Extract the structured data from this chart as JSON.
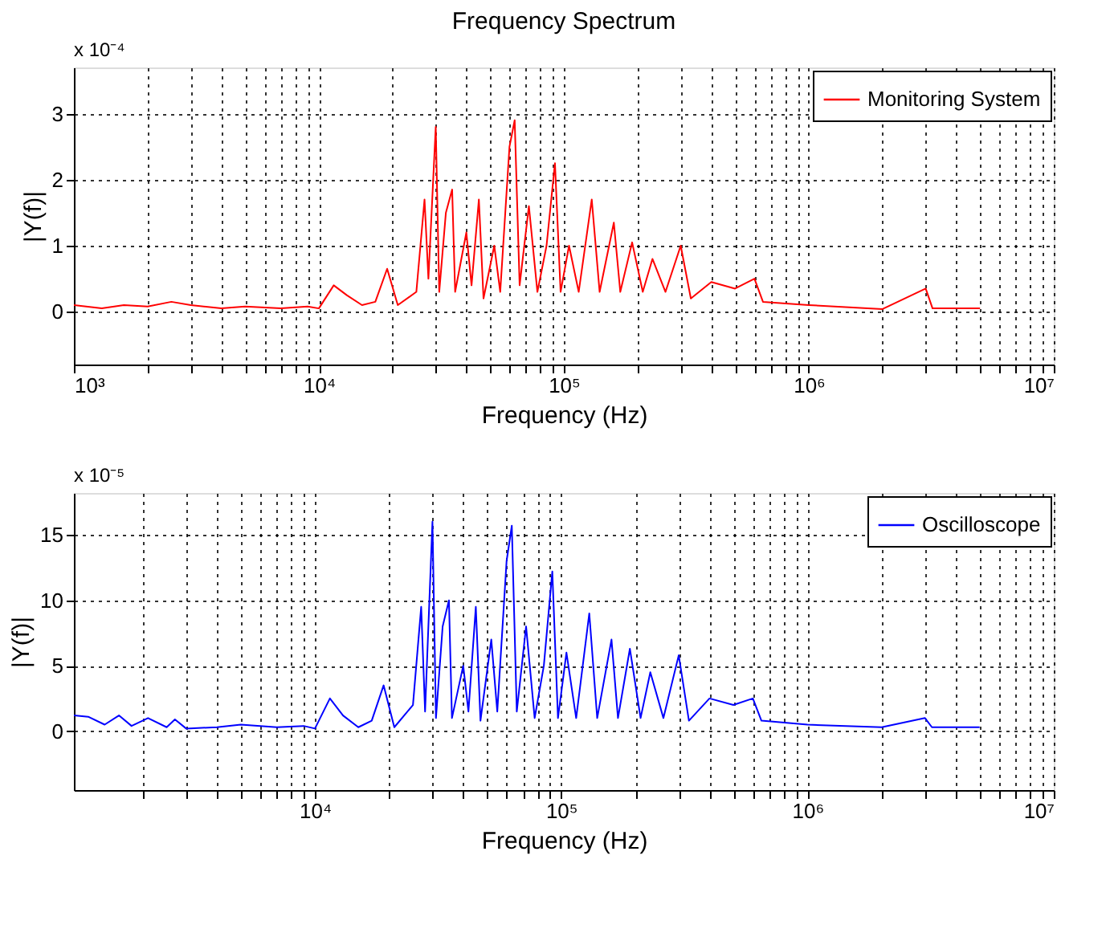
{
  "chart_data": [
    {
      "type": "line",
      "title": "Frequency Spectrum",
      "xlabel": "Frequency (Hz)",
      "ylabel": "|Y(f)|",
      "annotations": [
        "x 10⁻⁴"
      ],
      "log": "x",
      "grid": true,
      "legend": "top right",
      "xlim": [
        1000,
        10000000
      ],
      "ylim": [
        -0.8,
        3.7
      ],
      "yticks": [
        0,
        1,
        2,
        3
      ],
      "xticks": [
        {
          "value": 1000,
          "label": "10³"
        },
        {
          "value": 2000,
          "label": null
        },
        {
          "value": 3000,
          "label": null
        },
        {
          "value": 4000,
          "label": null
        },
        {
          "value": 5000,
          "label": null
        },
        {
          "value": 6000,
          "label": null
        },
        {
          "value": 7000,
          "label": null
        },
        {
          "value": 8000,
          "label": null
        },
        {
          "value": 9000,
          "label": null
        },
        {
          "value": 10000,
          "label": "10⁴"
        },
        {
          "value": 20000,
          "label": null
        },
        {
          "value": 30000,
          "label": null
        },
        {
          "value": 40000,
          "label": null
        },
        {
          "value": 50000,
          "label": null
        },
        {
          "value": 60000,
          "label": null
        },
        {
          "value": 70000,
          "label": null
        },
        {
          "value": 80000,
          "label": null
        },
        {
          "value": 90000,
          "label": null
        },
        {
          "value": 100000,
          "label": "10⁵"
        },
        {
          "value": 200000,
          "label": null
        },
        {
          "value": 300000,
          "label": null
        },
        {
          "value": 400000,
          "label": null
        },
        {
          "value": 500000,
          "label": null
        },
        {
          "value": 600000,
          "label": null
        },
        {
          "value": 700000,
          "label": null
        },
        {
          "value": 800000,
          "label": null
        },
        {
          "value": 900000,
          "label": null
        },
        {
          "value": 1000000,
          "label": "10⁶"
        },
        {
          "value": 2000000,
          "label": null
        },
        {
          "value": 3000000,
          "label": null
        },
        {
          "value": 4000000,
          "label": null
        },
        {
          "value": 5000000,
          "label": null
        },
        {
          "value": 6000000,
          "label": null
        },
        {
          "value": 7000000,
          "label": null
        },
        {
          "value": 8000000,
          "label": null
        },
        {
          "value": 9000000,
          "label": null
        },
        {
          "value": 10000000,
          "label": "10⁷"
        }
      ],
      "series": [
        {
          "name": "Monitoring System",
          "color": "#ff0000",
          "x": [
            1000,
            1300,
            1600,
            2000,
            2500,
            3000,
            4000,
            5000,
            7000,
            9000,
            10000,
            11500,
            13000,
            15000,
            17000,
            19000,
            21000,
            25000,
            27000,
            28000,
            30000,
            31000,
            33000,
            35000,
            36000,
            40000,
            42000,
            45000,
            47000,
            52000,
            55000,
            60000,
            63000,
            66000,
            72000,
            78000,
            85000,
            92000,
            97000,
            105000,
            115000,
            130000,
            140000,
            160000,
            170000,
            190000,
            210000,
            230000,
            260000,
            300000,
            330000,
            400000,
            500000,
            600000,
            650000,
            1000000,
            2000000,
            3000000,
            3200000,
            5000000
          ],
          "values": [
            0.1,
            0.05,
            0.1,
            0.08,
            0.15,
            0.1,
            0.05,
            0.08,
            0.05,
            0.08,
            0.05,
            0.4,
            0.25,
            0.1,
            0.15,
            0.65,
            0.1,
            0.3,
            1.7,
            0.5,
            2.8,
            0.3,
            1.5,
            1.85,
            0.3,
            1.2,
            0.4,
            1.7,
            0.2,
            1.0,
            0.3,
            2.5,
            2.9,
            0.4,
            1.6,
            0.3,
            1.0,
            2.25,
            0.3,
            1.0,
            0.3,
            1.7,
            0.3,
            1.35,
            0.3,
            1.05,
            0.3,
            0.8,
            0.3,
            1.0,
            0.2,
            0.45,
            0.35,
            0.5,
            0.15,
            0.1,
            0.04,
            0.35,
            0.05,
            0.05
          ]
        }
      ]
    },
    {
      "type": "line",
      "xlabel": "Frequency (Hz)",
      "ylabel": "|Y(f)|",
      "annotations": [
        "x 10⁻⁵"
      ],
      "log": "x",
      "grid": true,
      "legend": "top right",
      "xlim": [
        1050,
        10000000
      ],
      "ylim": [
        -4.5,
        18.2
      ],
      "yticks": [
        0,
        5,
        10,
        15
      ],
      "xticks": [
        {
          "value": 2000,
          "label": null
        },
        {
          "value": 3000,
          "label": null
        },
        {
          "value": 4000,
          "label": null
        },
        {
          "value": 5000,
          "label": null
        },
        {
          "value": 6000,
          "label": null
        },
        {
          "value": 7000,
          "label": null
        },
        {
          "value": 8000,
          "label": null
        },
        {
          "value": 9000,
          "label": null
        },
        {
          "value": 10000,
          "label": "10⁴"
        },
        {
          "value": 20000,
          "label": null
        },
        {
          "value": 30000,
          "label": null
        },
        {
          "value": 40000,
          "label": null
        },
        {
          "value": 50000,
          "label": null
        },
        {
          "value": 60000,
          "label": null
        },
        {
          "value": 70000,
          "label": null
        },
        {
          "value": 80000,
          "label": null
        },
        {
          "value": 90000,
          "label": null
        },
        {
          "value": 100000,
          "label": "10⁵"
        },
        {
          "value": 200000,
          "label": null
        },
        {
          "value": 300000,
          "label": null
        },
        {
          "value": 400000,
          "label": null
        },
        {
          "value": 500000,
          "label": null
        },
        {
          "value": 600000,
          "label": null
        },
        {
          "value": 700000,
          "label": null
        },
        {
          "value": 800000,
          "label": null
        },
        {
          "value": 900000,
          "label": null
        },
        {
          "value": 1000000,
          "label": "10⁶"
        },
        {
          "value": 2000000,
          "label": null
        },
        {
          "value": 3000000,
          "label": null
        },
        {
          "value": 4000000,
          "label": null
        },
        {
          "value": 5000000,
          "label": null
        },
        {
          "value": 6000000,
          "label": null
        },
        {
          "value": 7000000,
          "label": null
        },
        {
          "value": 8000000,
          "label": null
        },
        {
          "value": 9000000,
          "label": null
        },
        {
          "value": 10000000,
          "label": "10⁷"
        }
      ],
      "series": [
        {
          "name": "Oscilloscope",
          "color": "#0000ff",
          "x": [
            1050,
            1200,
            1400,
            1600,
            1800,
            2100,
            2500,
            2700,
            3000,
            4000,
            5000,
            7000,
            9000,
            10000,
            11500,
            13000,
            15000,
            17000,
            19000,
            21000,
            25000,
            27000,
            28000,
            30000,
            31000,
            33000,
            35000,
            36000,
            40000,
            42000,
            45000,
            47000,
            52000,
            55000,
            60000,
            63000,
            66000,
            72000,
            78000,
            85000,
            92000,
            97000,
            105000,
            115000,
            130000,
            140000,
            160000,
            170000,
            190000,
            210000,
            230000,
            260000,
            300000,
            330000,
            400000,
            500000,
            600000,
            650000,
            1000000,
            2000000,
            3000000,
            3200000,
            5000000
          ],
          "values": [
            1.2,
            1.1,
            0.5,
            1.2,
            0.4,
            1.0,
            0.3,
            0.9,
            0.2,
            0.3,
            0.5,
            0.3,
            0.4,
            0.2,
            2.5,
            1.2,
            0.3,
            0.8,
            3.5,
            0.3,
            2.0,
            9.5,
            1.5,
            16.0,
            1.0,
            8.0,
            10.0,
            1.0,
            5.0,
            1.5,
            9.5,
            0.8,
            7.0,
            1.5,
            13.0,
            15.7,
            1.5,
            8.0,
            1.0,
            5.0,
            12.2,
            1.0,
            6.0,
            1.0,
            9.0,
            1.0,
            7.0,
            1.0,
            6.3,
            1.0,
            4.5,
            1.0,
            5.8,
            0.8,
            2.5,
            2.0,
            2.5,
            0.8,
            0.5,
            0.3,
            1.0,
            0.3,
            0.3
          ]
        }
      ]
    }
  ]
}
